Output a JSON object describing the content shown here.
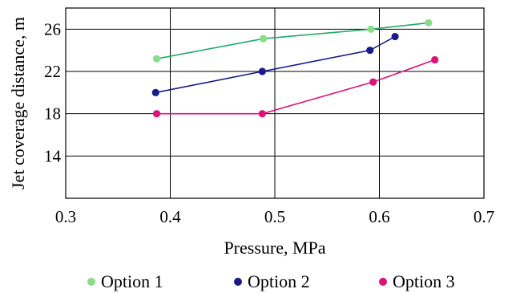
{
  "chart_data": {
    "type": "line",
    "xlabel": "Pressure, MPa",
    "ylabel": "Jet coverage distance, m",
    "xlim": [
      0.3,
      0.7
    ],
    "ylim": [
      10,
      28
    ],
    "xticks": [
      0.3,
      0.4,
      0.5,
      0.6,
      0.7
    ],
    "yticks": [
      14,
      18,
      22,
      26
    ],
    "x_tick_labels": [
      "0.3",
      "0.4",
      "0.5",
      "0.6",
      "0.7"
    ],
    "y_tick_labels": [
      "14",
      "18",
      "22",
      "26"
    ],
    "grid": true,
    "legend_position": "bottom",
    "series": [
      {
        "name": "Option 1",
        "color": "#88dd88",
        "line_color": "#22aa66",
        "x": [
          0.387,
          0.489,
          0.592,
          0.647
        ],
        "y": [
          23.2,
          25.1,
          26.0,
          26.6
        ]
      },
      {
        "name": "Option 2",
        "color": "#1a1a8c",
        "line_color": "#1a1a8c",
        "x": [
          0.386,
          0.488,
          0.591,
          0.615
        ],
        "y": [
          20.0,
          22.0,
          24.0,
          25.3
        ]
      },
      {
        "name": "Option 3",
        "color": "#dd1177",
        "line_color": "#dd1177",
        "x": [
          0.387,
          0.488,
          0.594,
          0.653
        ],
        "y": [
          18.0,
          18.0,
          21.0,
          23.1
        ]
      }
    ]
  }
}
